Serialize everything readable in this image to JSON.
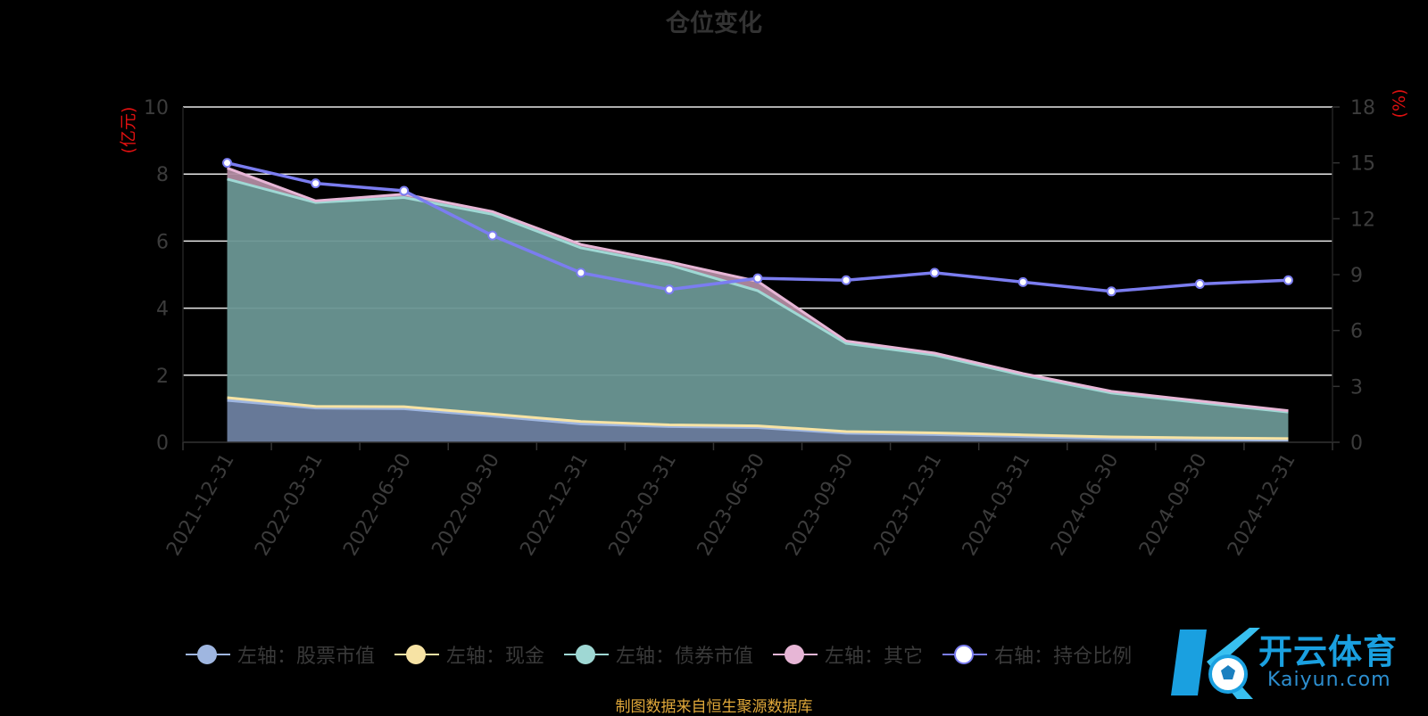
{
  "title": "仓位变化",
  "source_note": "制图数据来自恒生聚源数据库",
  "watermark": {
    "cn": "开云体育",
    "en": "Kaiyun.com"
  },
  "colors": {
    "stock": "#9fb6e0",
    "cash": "#f7e3a4",
    "bond": "#9fd8d4",
    "other": "#e7b6d6",
    "ratio": "#7b7df0",
    "axis_unit": "#e01010",
    "tick_label": "#3c3c3c",
    "grid": "#e8e8e8"
  },
  "chart_data": {
    "type": "area",
    "title": "仓位变化",
    "left_axis": {
      "label": "(亿元)",
      "ticks": [
        "0",
        "2",
        "4",
        "6",
        "8",
        "10"
      ],
      "ylim": [
        0,
        10
      ]
    },
    "right_axis": {
      "label": "(%)",
      "ticks": [
        "0",
        "3",
        "6",
        "9",
        "12",
        "15",
        "18"
      ],
      "ylim": [
        0,
        18
      ]
    },
    "categories": [
      "2021-12-31",
      "2022-03-31",
      "2022-06-30",
      "2022-09-30",
      "2022-12-31",
      "2023-03-31",
      "2023-06-30",
      "2023-09-30",
      "2023-12-31",
      "2024-03-31",
      "2024-06-30",
      "2024-09-30",
      "2024-12-31"
    ],
    "series": [
      {
        "name": "左轴：股票市值",
        "key": "stock",
        "axis": "left",
        "stacked": true,
        "values": [
          1.25,
          1.02,
          1.0,
          0.78,
          0.55,
          0.47,
          0.44,
          0.27,
          0.23,
          0.17,
          0.11,
          0.08,
          0.06
        ]
      },
      {
        "name": "左轴：现金",
        "key": "cash",
        "axis": "left",
        "stacked": true,
        "values": [
          0.08,
          0.05,
          0.06,
          0.06,
          0.07,
          0.05,
          0.05,
          0.05,
          0.05,
          0.05,
          0.05,
          0.05,
          0.05
        ]
      },
      {
        "name": "左轴：债券市值",
        "key": "bond",
        "axis": "left",
        "stacked": true,
        "values": [
          6.52,
          6.08,
          6.24,
          5.96,
          5.18,
          4.77,
          4.03,
          2.63,
          2.32,
          1.78,
          1.31,
          1.05,
          0.79
        ]
      },
      {
        "name": "左轴：其它",
        "key": "other",
        "axis": "left",
        "stacked": true,
        "values": [
          0.33,
          0.05,
          0.1,
          0.08,
          0.1,
          0.09,
          0.28,
          0.07,
          0.06,
          0.05,
          0.05,
          0.05,
          0.04
        ]
      },
      {
        "name": "右轴：持仓比例",
        "key": "ratio",
        "axis": "right",
        "stacked": false,
        "values": [
          15.0,
          13.9,
          13.5,
          11.1,
          9.1,
          8.2,
          8.8,
          8.7,
          9.1,
          8.6,
          8.1,
          8.5,
          8.7
        ]
      }
    ],
    "legend_position": "bottom",
    "grid": true
  }
}
